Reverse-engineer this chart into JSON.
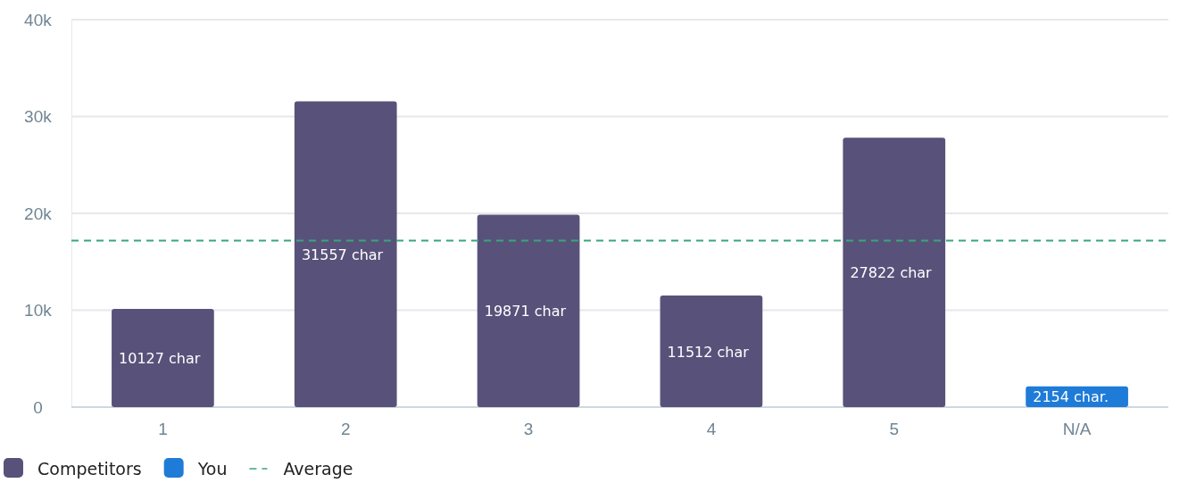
{
  "chart_data": {
    "type": "bar",
    "categories": [
      "1",
      "2",
      "3",
      "4",
      "5",
      "N/A"
    ],
    "series": [
      {
        "name": "Competitors",
        "color": "#58527a",
        "values": [
          10127,
          31557,
          19871,
          11512,
          27822,
          null
        ],
        "value_labels": [
          "10127 char",
          "31557 char",
          "19871 char",
          "11512 char",
          "27822 char",
          null
        ]
      },
      {
        "name": "You",
        "color": "#1f7bd8",
        "values": [
          null,
          null,
          null,
          null,
          null,
          2154
        ],
        "value_labels": [
          null,
          null,
          null,
          null,
          null,
          "2154 char."
        ]
      }
    ],
    "ylim": [
      0,
      40000
    ],
    "yticks": [
      {
        "value": 0,
        "label": "0"
      },
      {
        "value": 10000,
        "label": "10k"
      },
      {
        "value": 20000,
        "label": "20k"
      },
      {
        "value": 30000,
        "label": "30k"
      },
      {
        "value": 40000,
        "label": "40k"
      }
    ],
    "ref_lines": [
      {
        "axis": "y",
        "value": 17200,
        "label": "Average",
        "color": "#3aa57a",
        "line_style": "dashed"
      }
    ],
    "grid": "y",
    "legend": "bottom left"
  }
}
